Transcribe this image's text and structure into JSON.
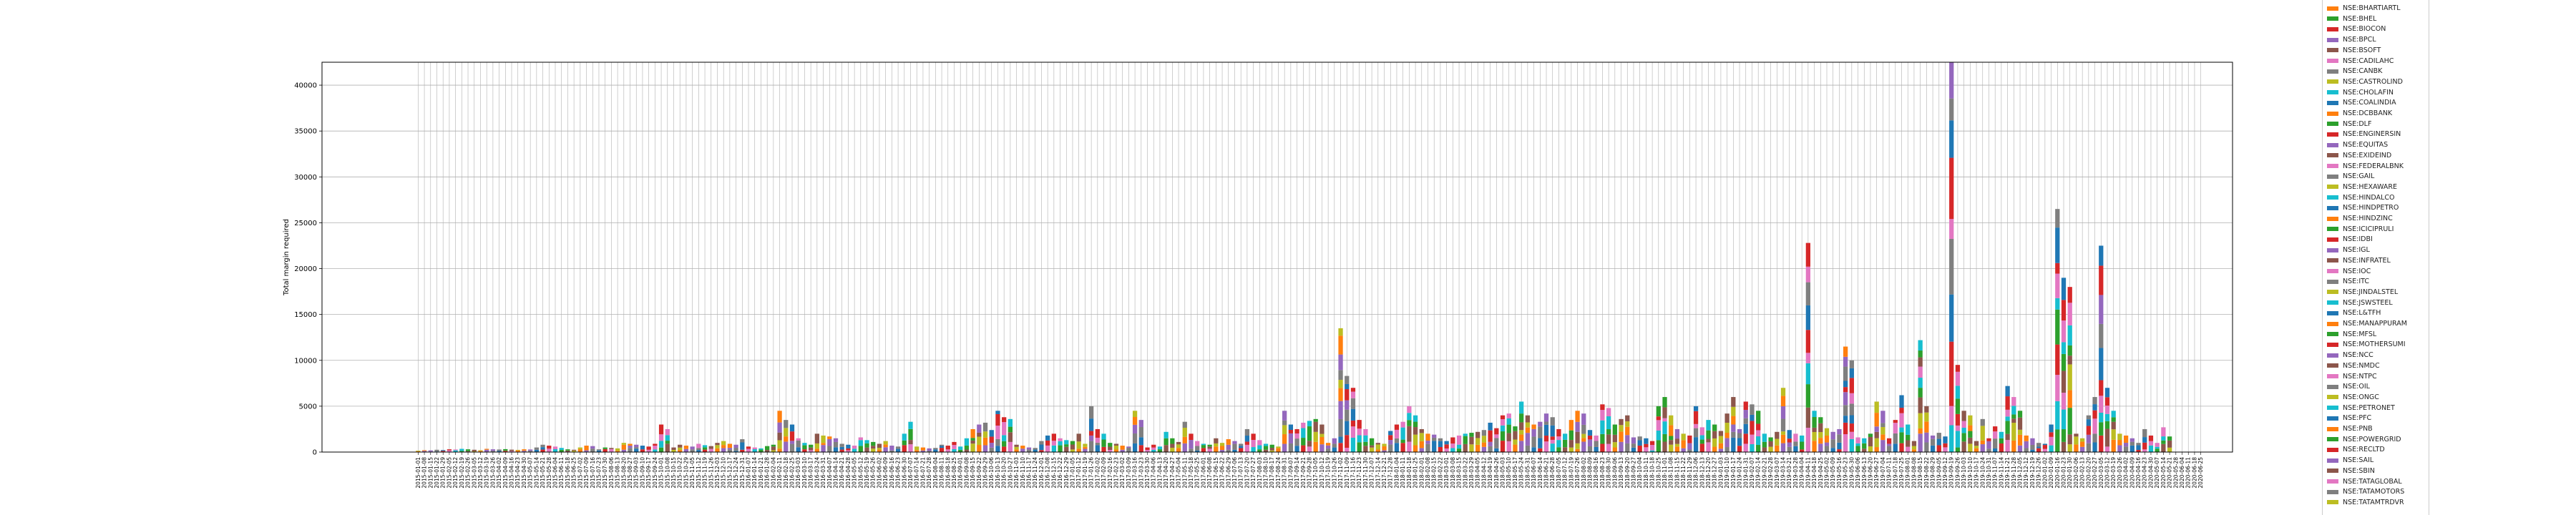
{
  "chart_data": {
    "type": "bar",
    "stacked": true,
    "title": "",
    "xlabel": "",
    "ylabel": "Total margin required",
    "ylim": [
      0,
      42500
    ],
    "yticks": [
      0,
      5000,
      10000,
      15000,
      20000,
      25000,
      30000,
      35000,
      40000
    ],
    "grid": true,
    "legend_position": "right",
    "categories": [
      "2015-01-01",
      "2015-01-08",
      "2015-01-15",
      "2015-01-22",
      "2015-01-29",
      "2015-02-05",
      "2015-02-12",
      "2015-02-19",
      "2015-02-26",
      "2015-03-05",
      "2015-03-12",
      "2015-03-19",
      "2015-03-26",
      "2015-04-02",
      "2015-04-09",
      "2015-04-16",
      "2015-04-23",
      "2015-04-30",
      "2015-05-07",
      "2015-05-14",
      "2015-05-21",
      "2015-05-28",
      "2015-06-04",
      "2015-06-11",
      "2015-06-18",
      "2015-06-25",
      "2015-07-02",
      "2015-07-09",
      "2015-07-16",
      "2015-07-23",
      "2015-07-30",
      "2015-08-06",
      "2015-08-13",
      "2015-08-20",
      "2015-08-27",
      "2015-09-03",
      "2015-09-10",
      "2015-09-17",
      "2015-09-24",
      "2015-10-01",
      "2015-10-08",
      "2015-10-15",
      "2015-10-22",
      "2015-10-29",
      "2015-11-05",
      "2015-11-12",
      "2015-11-19",
      "2015-11-26",
      "2015-12-03",
      "2015-12-10",
      "2015-12-17",
      "2015-12-24",
      "2015-12-31",
      "2016-01-07",
      "2016-01-14",
      "2016-01-21",
      "2016-01-28",
      "2016-02-04",
      "2016-02-11",
      "2016-02-18",
      "2016-02-25",
      "2016-03-03",
      "2016-03-10",
      "2016-03-17",
      "2016-03-24",
      "2016-03-31",
      "2016-04-07",
      "2016-04-14",
      "2016-04-21",
      "2016-04-28",
      "2016-05-05",
      "2016-05-12",
      "2016-05-19",
      "2016-05-26",
      "2016-06-02",
      "2016-06-09",
      "2016-06-16",
      "2016-06-23",
      "2016-06-30",
      "2016-07-07",
      "2016-07-14",
      "2016-07-21",
      "2016-07-28",
      "2016-08-04",
      "2016-08-11",
      "2016-08-18",
      "2016-08-25",
      "2016-09-01",
      "2016-09-08",
      "2016-09-15",
      "2016-09-22",
      "2016-09-29",
      "2016-10-06",
      "2016-10-13",
      "2016-10-20",
      "2016-10-27",
      "2016-11-03",
      "2016-11-10",
      "2016-11-17",
      "2016-11-24",
      "2016-12-01",
      "2016-12-08",
      "2016-12-15",
      "2016-12-22",
      "2016-12-29",
      "2017-01-05",
      "2017-01-12",
      "2017-01-19",
      "2017-01-26",
      "2017-02-02",
      "2017-02-09",
      "2017-02-16",
      "2017-02-23",
      "2017-03-02",
      "2017-03-09",
      "2017-03-16",
      "2017-03-23",
      "2017-03-30",
      "2017-04-06",
      "2017-04-13",
      "2017-04-20",
      "2017-04-27",
      "2017-05-04",
      "2017-05-11",
      "2017-05-18",
      "2017-05-25",
      "2017-06-01",
      "2017-06-08",
      "2017-06-15",
      "2017-06-22",
      "2017-06-29",
      "2017-07-06",
      "2017-07-13",
      "2017-07-20",
      "2017-07-27",
      "2017-08-03",
      "2017-08-10",
      "2017-08-17",
      "2017-08-24",
      "2017-08-31",
      "2017-09-07",
      "2017-09-14",
      "2017-09-21",
      "2017-09-28",
      "2017-10-05",
      "2017-10-12",
      "2017-10-19",
      "2017-10-26",
      "2017-11-02",
      "2017-11-09",
      "2017-11-16",
      "2017-11-23",
      "2017-11-30",
      "2017-12-07",
      "2017-12-14",
      "2017-12-21",
      "2017-12-28",
      "2018-01-04",
      "2018-01-11",
      "2018-01-18",
      "2018-01-25",
      "2018-02-01",
      "2018-02-08",
      "2018-02-15",
      "2018-02-22",
      "2018-03-01",
      "2018-03-08",
      "2018-03-15",
      "2018-03-22",
      "2018-03-29",
      "2018-04-05",
      "2018-04-12",
      "2018-04-19",
      "2018-04-26",
      "2018-05-03",
      "2018-05-10",
      "2018-05-17",
      "2018-05-24",
      "2018-05-31",
      "2018-06-07",
      "2018-06-14",
      "2018-06-21",
      "2018-06-28",
      "2018-07-05",
      "2018-07-12",
      "2018-07-19",
      "2018-07-26",
      "2018-08-02",
      "2018-08-09",
      "2018-08-16",
      "2018-08-23",
      "2018-08-30",
      "2018-09-06",
      "2018-09-13",
      "2018-09-20",
      "2018-09-27",
      "2018-10-04",
      "2018-10-11",
      "2018-10-18",
      "2018-10-25",
      "2018-11-01",
      "2018-11-08",
      "2018-11-15",
      "2018-11-22",
      "2018-11-29",
      "2018-12-06",
      "2018-12-13",
      "2018-12-20",
      "2018-12-27",
      "2019-01-03",
      "2019-01-10",
      "2019-01-17",
      "2019-01-24",
      "2019-01-31",
      "2019-02-07",
      "2019-02-14",
      "2019-02-21",
      "2019-02-28",
      "2019-03-07",
      "2019-03-14",
      "2019-03-21",
      "2019-03-28",
      "2019-04-04",
      "2019-04-11",
      "2019-04-18",
      "2019-04-25",
      "2019-05-02",
      "2019-05-09",
      "2019-05-16",
      "2019-05-23",
      "2019-05-30",
      "2019-06-06",
      "2019-06-13",
      "2019-06-20",
      "2019-06-27",
      "2019-07-04",
      "2019-07-11",
      "2019-07-18",
      "2019-07-25",
      "2019-08-01",
      "2019-08-08",
      "2019-08-15",
      "2019-08-22",
      "2019-08-29",
      "2019-09-05",
      "2019-09-12",
      "2019-09-19",
      "2019-09-26",
      "2019-10-03",
      "2019-10-10",
      "2019-10-17",
      "2019-10-24",
      "2019-10-31",
      "2019-11-07",
      "2019-11-14",
      "2019-11-21",
      "2019-11-28",
      "2019-12-05",
      "2019-12-12",
      "2019-12-19",
      "2019-12-26",
      "2020-01-02",
      "2020-01-09",
      "2020-01-16",
      "2020-01-23",
      "2020-01-30",
      "2020-02-06",
      "2020-02-13",
      "2020-02-20",
      "2020-02-27",
      "2020-03-05",
      "2020-03-12",
      "2020-03-19",
      "2020-03-26",
      "2020-04-02",
      "2020-04-09",
      "2020-04-16",
      "2020-04-23",
      "2020-04-30",
      "2020-05-07",
      "2020-05-14",
      "2020-05-21",
      "2020-05-28",
      "2020-06-04",
      "2020-06-11",
      "2020-06-18",
      "2020-06-25"
    ],
    "totals": [
      150,
      200,
      180,
      250,
      220,
      300,
      280,
      350,
      300,
      250,
      200,
      350,
      300,
      280,
      320,
      260,
      240,
      300,
      280,
      500,
      800,
      700,
      600,
      450,
      300,
      250,
      500,
      700,
      650,
      300,
      500,
      450,
      400,
      1000,
      900,
      800,
      700,
      600,
      900,
      3000,
      2500,
      500,
      800,
      700,
      600,
      900,
      750,
      650,
      1000,
      1200,
      900,
      800,
      1400,
      600,
      500,
      400,
      650,
      800,
      4500,
      3500,
      3000,
      1500,
      1000,
      800,
      2000,
      1800,
      1700,
      1500,
      900,
      800,
      700,
      1600,
      1300,
      1100,
      900,
      1200,
      700,
      600,
      2000,
      3300,
      600,
      500,
      400,
      450,
      800,
      700,
      1100,
      600,
      1500,
      2500,
      3000,
      3200,
      2400,
      4500,
      3800,
      3600,
      800,
      700,
      500,
      450,
      1200,
      1800,
      2000,
      1500,
      1300,
      1200,
      2000,
      900,
      5000,
      2500,
      2000,
      1000,
      900,
      700,
      600,
      4500,
      3500,
      500,
      800,
      600,
      2200,
      1500,
      1100,
      3300,
      2000,
      1200,
      900,
      800,
      1500,
      1000,
      1400,
      1200,
      900,
      2500,
      2000,
      1300,
      900,
      800,
      600,
      4500,
      3000,
      2500,
      3200,
      3400,
      3600,
      3000,
      1000,
      1500,
      13500,
      8300,
      7000,
      3500,
      2500,
      1500,
      1000,
      900,
      2300,
      3000,
      3300,
      5000,
      4000,
      2500,
      2000,
      1900,
      1500,
      1200,
      1600,
      1800,
      2000,
      2100,
      2200,
      2400,
      3200,
      2600,
      4000,
      4200,
      2800,
      5500,
      4000,
      3000,
      3300,
      4200,
      3800,
      2500,
      2000,
      3500,
      4500,
      4200,
      2400,
      1800,
      5200,
      4800,
      3000,
      3600,
      4000,
      1600,
      1700,
      1500,
      1200,
      5000,
      6000,
      4000,
      2500,
      2000,
      1800,
      5000,
      2700,
      3500,
      3000,
      2300,
      4200,
      6000,
      2500,
      5500,
      5200,
      4500,
      2000,
      1600,
      2200,
      7000,
      2400,
      2000,
      1800,
      22800,
      4500,
      3800,
      2600,
      2200,
      2500,
      11500,
      10000,
      1600,
      1500,
      2000,
      5500,
      4500,
      1500,
      3500,
      6200,
      3000,
      1200,
      12200,
      5000,
      1800,
      2100,
      1700,
      42500,
      9500,
      4500,
      4000,
      1200,
      3600,
      1500,
      2800,
      2200,
      7200,
      6000,
      4500,
      1800,
      1500,
      1000,
      900,
      3000,
      26500,
      19000,
      18000,
      2000,
      1500,
      4000,
      6000,
      22500,
      7000,
      4500,
      2000,
      1800,
      1500,
      1000,
      2500,
      1800,
      1000,
      2700,
      1700
    ]
  },
  "legend": {
    "items": [
      {
        "label": "NSE:BHARTIARTL",
        "color": "#ff7f0e"
      },
      {
        "label": "NSE:BHEL",
        "color": "#2ca02c"
      },
      {
        "label": "NSE:BIOCON",
        "color": "#d62728"
      },
      {
        "label": "NSE:BPCL",
        "color": "#9467bd"
      },
      {
        "label": "NSE:BSOFT",
        "color": "#8c564b"
      },
      {
        "label": "NSE:CADILAHC",
        "color": "#e377c2"
      },
      {
        "label": "NSE:CANBK",
        "color": "#7f7f7f"
      },
      {
        "label": "NSE:CASTROLIND",
        "color": "#bcbd22"
      },
      {
        "label": "NSE:CHOLAFIN",
        "color": "#17becf"
      },
      {
        "label": "NSE:COALINDIA",
        "color": "#1f77b4"
      },
      {
        "label": "NSE:DCBBANK",
        "color": "#ff7f0e"
      },
      {
        "label": "NSE:DLF",
        "color": "#2ca02c"
      },
      {
        "label": "NSE:ENGINERSIN",
        "color": "#d62728"
      },
      {
        "label": "NSE:EQUITAS",
        "color": "#9467bd"
      },
      {
        "label": "NSE:EXIDEIND",
        "color": "#8c564b"
      },
      {
        "label": "NSE:FEDERALBNK",
        "color": "#e377c2"
      },
      {
        "label": "NSE:GAIL",
        "color": "#7f7f7f"
      },
      {
        "label": "NSE:HEXAWARE",
        "color": "#bcbd22"
      },
      {
        "label": "NSE:HINDALCO",
        "color": "#17becf"
      },
      {
        "label": "NSE:HINDPETRO",
        "color": "#1f77b4"
      },
      {
        "label": "NSE:HINDZINC",
        "color": "#ff7f0e"
      },
      {
        "label": "NSE:ICICIPRULI",
        "color": "#2ca02c"
      },
      {
        "label": "NSE:IDBI",
        "color": "#d62728"
      },
      {
        "label": "NSE:IGL",
        "color": "#9467bd"
      },
      {
        "label": "NSE:INFRATEL",
        "color": "#8c564b"
      },
      {
        "label": "NSE:IOC",
        "color": "#e377c2"
      },
      {
        "label": "NSE:ITC",
        "color": "#7f7f7f"
      },
      {
        "label": "NSE:JINDALSTEL",
        "color": "#bcbd22"
      },
      {
        "label": "NSE:JSWSTEEL",
        "color": "#17becf"
      },
      {
        "label": "NSE:L&TFH",
        "color": "#1f77b4"
      },
      {
        "label": "NSE:MANAPPURAM",
        "color": "#ff7f0e"
      },
      {
        "label": "NSE:MFSL",
        "color": "#2ca02c"
      },
      {
        "label": "NSE:MOTHERSUMI",
        "color": "#d62728"
      },
      {
        "label": "NSE:NCC",
        "color": "#9467bd"
      },
      {
        "label": "NSE:NMDC",
        "color": "#8c564b"
      },
      {
        "label": "NSE:NTPC",
        "color": "#e377c2"
      },
      {
        "label": "NSE:OIL",
        "color": "#7f7f7f"
      },
      {
        "label": "NSE:ONGC",
        "color": "#bcbd22"
      },
      {
        "label": "NSE:PETRONET",
        "color": "#17becf"
      },
      {
        "label": "NSE:PFC",
        "color": "#1f77b4"
      },
      {
        "label": "NSE:PNB",
        "color": "#ff7f0e"
      },
      {
        "label": "NSE:POWERGRID",
        "color": "#2ca02c"
      },
      {
        "label": "NSE:RECLTD",
        "color": "#d62728"
      },
      {
        "label": "NSE:SAIL",
        "color": "#9467bd"
      },
      {
        "label": "NSE:SBIN",
        "color": "#8c564b"
      },
      {
        "label": "NSE:TATAGLOBAL",
        "color": "#e377c2"
      },
      {
        "label": "NSE:TATAMOTORS",
        "color": "#7f7f7f"
      },
      {
        "label": "NSE:TATAMTRDVR",
        "color": "#bcbd22"
      }
    ]
  }
}
